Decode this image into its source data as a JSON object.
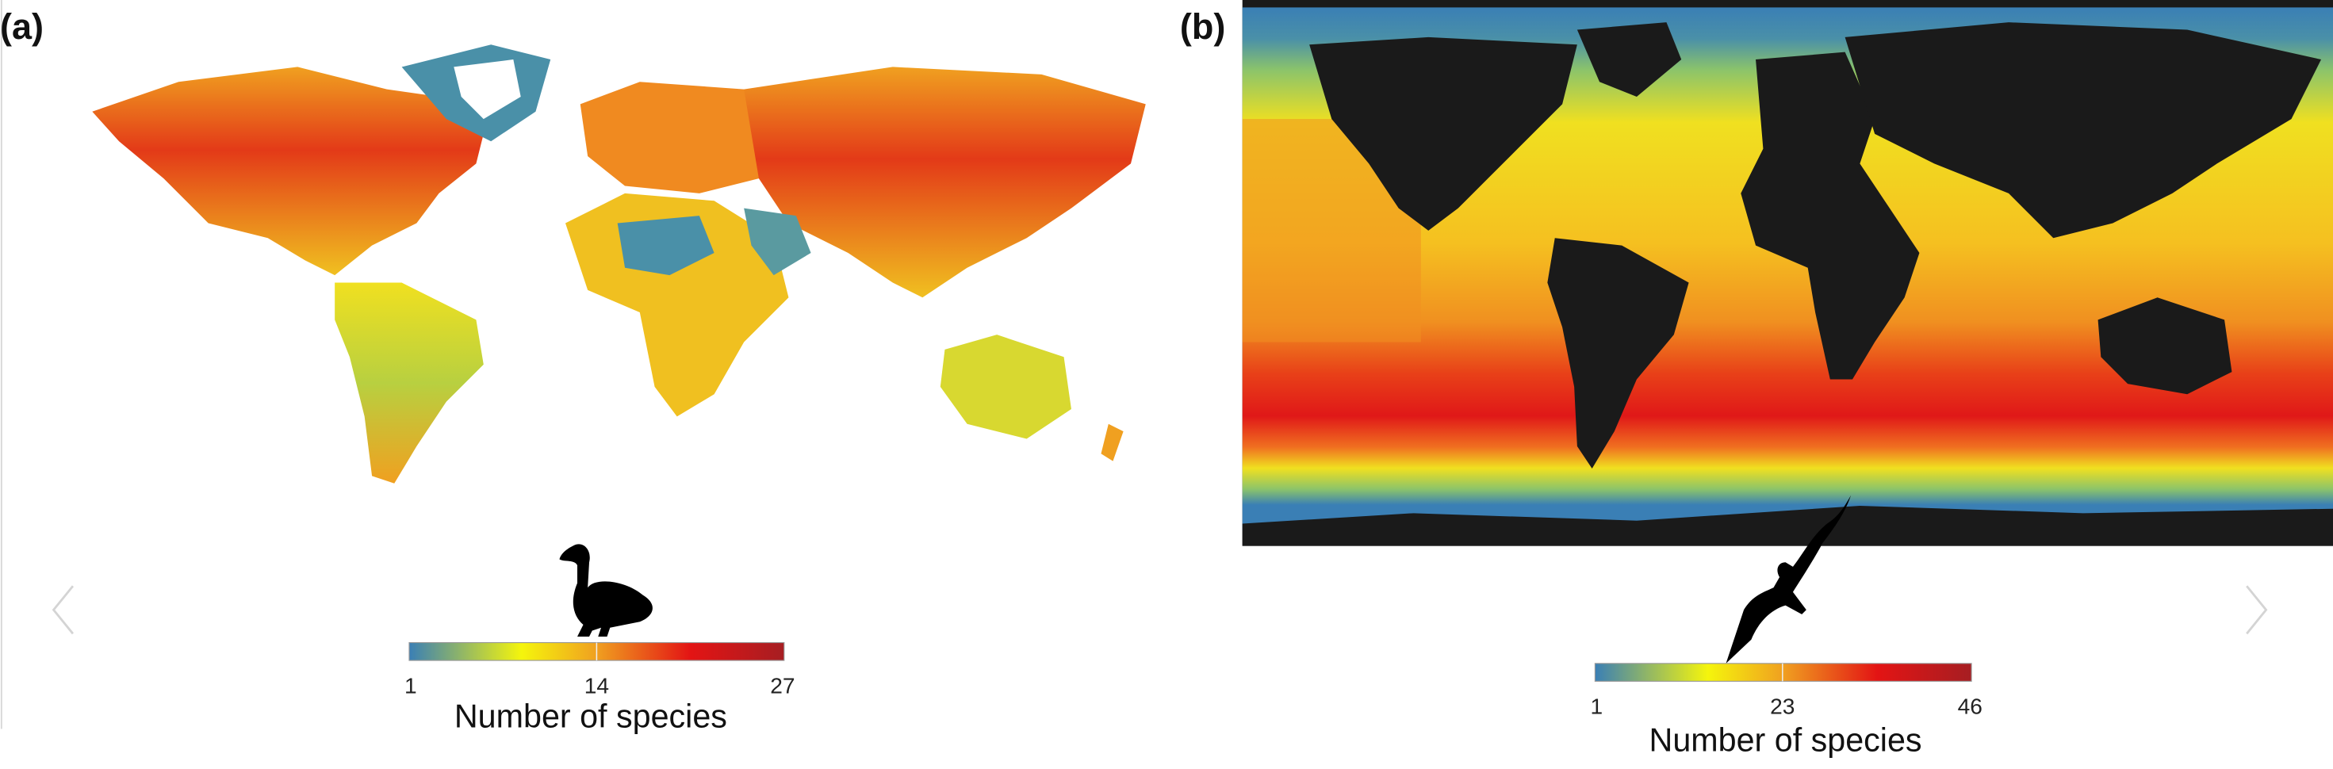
{
  "panels": [
    {
      "label": "(a)",
      "icon": "duck-silhouette-icon",
      "colorbar": {
        "title": "Number of species",
        "ticks": [
          "1",
          "14",
          "27"
        ],
        "min": 1,
        "mid": 14,
        "max": 27,
        "colors": [
          "#3a7fb5",
          "#f5f50c",
          "#f0a020",
          "#e31414",
          "#a61e22"
        ]
      },
      "background": "#ffffff"
    },
    {
      "label": "(b)",
      "icon": "albatross-silhouette-icon",
      "colorbar": {
        "title": "Number of species",
        "ticks": [
          "1",
          "23",
          "46"
        ],
        "min": 1,
        "mid": 23,
        "max": 46,
        "colors": [
          "#3a7fb5",
          "#f5f50c",
          "#f0a020",
          "#e31414",
          "#a61e22"
        ]
      },
      "land_color": "#1a1a1a"
    }
  ],
  "navigation": {
    "prev_icon": "chevron-left-icon",
    "next_icon": "chevron-right-icon"
  }
}
